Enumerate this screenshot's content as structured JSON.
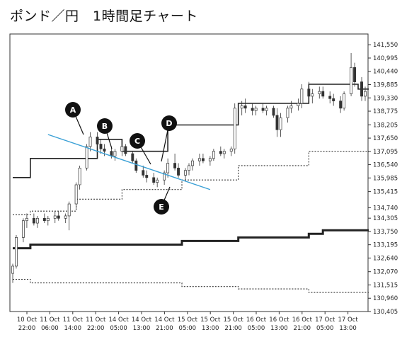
{
  "title": "ポンド／円　1時間足チャート",
  "chart_data": {
    "type": "candlestick",
    "ylim": [
      130.405,
      142.0
    ],
    "yticks": [
      "141,550",
      "140,995",
      "140,440",
      "139,885",
      "139,330",
      "138,775",
      "138,205",
      "137,650",
      "137,095",
      "136,540",
      "135,985",
      "135,415",
      "134,740",
      "134,305",
      "133,750",
      "133,195",
      "132,640",
      "132,070",
      "131,515",
      "130,960",
      "130,405"
    ],
    "ytick_values": [
      141.55,
      140.995,
      140.44,
      139.885,
      139.33,
      138.775,
      138.205,
      137.65,
      137.095,
      136.54,
      135.985,
      135.415,
      134.74,
      134.305,
      133.75,
      133.195,
      132.64,
      132.07,
      131.515,
      130.96,
      130.405
    ],
    "xticks": [
      {
        "day": "10 Oct",
        "time": "22:00"
      },
      {
        "day": "11 Oct",
        "time": "06:00"
      },
      {
        "day": "11 Oct",
        "time": "14:00"
      },
      {
        "day": "11 Oct",
        "time": "22:00"
      },
      {
        "day": "14 Oct",
        "time": "05:00"
      },
      {
        "day": "14 Oct",
        "time": "13:00"
      },
      {
        "day": "14 Oct",
        "time": "21:00"
      },
      {
        "day": "15 Oct",
        "time": "05:00"
      },
      {
        "day": "15 Oct",
        "time": "13:00"
      },
      {
        "day": "15 Oct",
        "time": "21:00"
      },
      {
        "day": "16 Oct",
        "time": "05:00"
      },
      {
        "day": "16 Oct",
        "time": "13:00"
      },
      {
        "day": "16 Oct",
        "time": "21:00"
      },
      {
        "day": "17 Oct",
        "time": "05:00"
      },
      {
        "day": "17 Oct",
        "time": "13:00"
      }
    ],
    "candles": [
      [
        132.0,
        132.4,
        131.6,
        132.3
      ],
      [
        132.3,
        133.6,
        132.2,
        133.5
      ],
      [
        133.5,
        134.3,
        133.3,
        134.2
      ],
      [
        134.2,
        134.5,
        133.9,
        134.3
      ],
      [
        134.3,
        134.5,
        134.0,
        134.1
      ],
      [
        134.1,
        134.4,
        133.9,
        134.3
      ],
      [
        134.3,
        134.5,
        134.1,
        134.2
      ],
      [
        134.2,
        134.4,
        134.0,
        134.3
      ],
      [
        134.3,
        134.6,
        134.1,
        134.4
      ],
      [
        134.4,
        134.6,
        134.2,
        134.3
      ],
      [
        134.3,
        134.5,
        134.1,
        134.4
      ],
      [
        134.4,
        135.0,
        133.8,
        134.9
      ],
      [
        134.9,
        135.8,
        134.7,
        135.7
      ],
      [
        135.7,
        136.5,
        135.5,
        136.4
      ],
      [
        136.4,
        137.4,
        136.3,
        137.3
      ],
      [
        137.3,
        137.9,
        137.1,
        137.7
      ],
      [
        137.7,
        137.9,
        137.3,
        137.4
      ],
      [
        137.4,
        137.6,
        137.0,
        137.2
      ],
      [
        137.2,
        137.4,
        136.9,
        137.1
      ],
      [
        137.1,
        137.3,
        136.8,
        136.9
      ],
      [
        136.9,
        137.2,
        136.7,
        137.1
      ],
      [
        137.1,
        137.4,
        136.9,
        137.3
      ],
      [
        137.3,
        137.4,
        136.9,
        137.0
      ],
      [
        137.0,
        137.1,
        136.6,
        136.7
      ],
      [
        136.7,
        136.8,
        136.2,
        136.3
      ],
      [
        136.3,
        136.5,
        136.0,
        136.1
      ],
      [
        136.1,
        136.3,
        135.8,
        136.0
      ],
      [
        136.0,
        136.2,
        135.7,
        135.8
      ],
      [
        135.8,
        136.0,
        135.6,
        135.9
      ],
      [
        135.9,
        136.3,
        135.7,
        136.2
      ],
      [
        136.2,
        136.8,
        136.0,
        136.6
      ],
      [
        136.6,
        137.0,
        136.3,
        136.4
      ],
      [
        136.4,
        136.6,
        136.0,
        136.1
      ],
      [
        136.1,
        136.4,
        135.9,
        136.3
      ],
      [
        136.3,
        136.6,
        136.1,
        136.5
      ],
      [
        136.5,
        136.8,
        136.3,
        136.7
      ],
      [
        136.7,
        137.0,
        136.5,
        136.8
      ],
      [
        136.8,
        137.0,
        136.6,
        136.7
      ],
      [
        136.7,
        136.9,
        136.5,
        136.8
      ],
      [
        136.8,
        137.2,
        136.7,
        137.1
      ],
      [
        137.1,
        137.3,
        136.9,
        137.0
      ],
      [
        137.0,
        137.2,
        136.8,
        137.1
      ],
      [
        137.1,
        137.3,
        136.9,
        137.2
      ],
      [
        137.2,
        139.1,
        137.0,
        138.9
      ],
      [
        138.9,
        139.2,
        138.6,
        139.0
      ],
      [
        139.0,
        139.3,
        138.7,
        138.9
      ],
      [
        138.9,
        139.1,
        138.6,
        138.8
      ],
      [
        138.8,
        139.0,
        138.6,
        138.9
      ],
      [
        138.9,
        139.1,
        138.7,
        138.8
      ],
      [
        138.8,
        139.0,
        138.6,
        138.9
      ],
      [
        138.9,
        139.0,
        138.5,
        138.6
      ],
      [
        138.6,
        138.9,
        137.7,
        138.0
      ],
      [
        138.0,
        138.7,
        137.7,
        138.5
      ],
      [
        138.5,
        139.0,
        138.3,
        138.9
      ],
      [
        138.9,
        139.2,
        138.7,
        139.0
      ],
      [
        139.0,
        139.3,
        138.8,
        139.1
      ],
      [
        139.1,
        139.9,
        138.9,
        139.7
      ],
      [
        139.7,
        140.0,
        139.2,
        139.4
      ],
      [
        139.4,
        139.7,
        139.1,
        139.5
      ],
      [
        139.5,
        139.8,
        139.3,
        139.6
      ],
      [
        139.6,
        139.8,
        139.3,
        139.4
      ],
      [
        139.4,
        139.6,
        139.1,
        139.3
      ],
      [
        139.3,
        139.5,
        139.0,
        139.2
      ],
      [
        139.2,
        139.4,
        138.7,
        138.9
      ],
      [
        138.9,
        139.6,
        138.8,
        139.5
      ],
      [
        139.5,
        141.2,
        139.4,
        140.6
      ],
      [
        140.6,
        140.8,
        139.8,
        140.0
      ],
      [
        140.0,
        140.2,
        139.2,
        139.4
      ],
      [
        139.4,
        139.8,
        139.2,
        139.6
      ]
    ],
    "trendline": [
      [
        10,
        137.8
      ],
      [
        56,
        135.5
      ]
    ],
    "upper_band": [
      [
        0,
        136.0
      ],
      [
        5,
        136.0
      ],
      [
        5,
        136.8
      ],
      [
        24,
        136.8
      ],
      [
        24,
        137.6
      ],
      [
        31,
        137.6
      ],
      [
        31,
        137.1
      ],
      [
        44,
        137.1
      ],
      [
        44,
        138.2
      ],
      [
        64,
        138.2
      ],
      [
        64,
        139.1
      ],
      [
        84,
        139.1
      ],
      [
        84,
        139.9
      ],
      [
        98,
        139.9
      ],
      [
        98,
        139.7
      ],
      [
        101,
        139.7
      ]
    ],
    "lower_band": [
      [
        0,
        133.05
      ],
      [
        5,
        133.05
      ],
      [
        5,
        133.2
      ],
      [
        48,
        133.2
      ],
      [
        48,
        133.35
      ],
      [
        64,
        133.35
      ],
      [
        64,
        133.5
      ],
      [
        84,
        133.5
      ],
      [
        84,
        133.65
      ],
      [
        88,
        133.65
      ],
      [
        88,
        133.8
      ],
      [
        101,
        133.8
      ]
    ],
    "upper_dotted": [
      [
        0,
        134.45
      ],
      [
        5,
        134.45
      ],
      [
        5,
        134.6
      ],
      [
        18,
        134.6
      ],
      [
        18,
        135.1
      ],
      [
        31,
        135.1
      ],
      [
        31,
        135.5
      ],
      [
        48,
        135.5
      ],
      [
        48,
        135.9
      ],
      [
        64,
        135.9
      ],
      [
        64,
        136.5
      ],
      [
        84,
        136.5
      ],
      [
        84,
        137.1
      ],
      [
        101,
        137.1
      ]
    ],
    "lower_dotted": [
      [
        0,
        131.75
      ],
      [
        5,
        131.75
      ],
      [
        5,
        131.6
      ],
      [
        48,
        131.6
      ],
      [
        48,
        131.45
      ],
      [
        64,
        131.45
      ],
      [
        64,
        131.35
      ],
      [
        84,
        131.35
      ],
      [
        84,
        131.2
      ],
      [
        101,
        131.2
      ]
    ],
    "annotations": [
      "A",
      "B",
      "C",
      "D",
      "E"
    ],
    "colors": {
      "trendline": "#3aa0d6",
      "band": "#222222",
      "candle_up": "#ffffff",
      "candle_down": "#333333"
    }
  }
}
